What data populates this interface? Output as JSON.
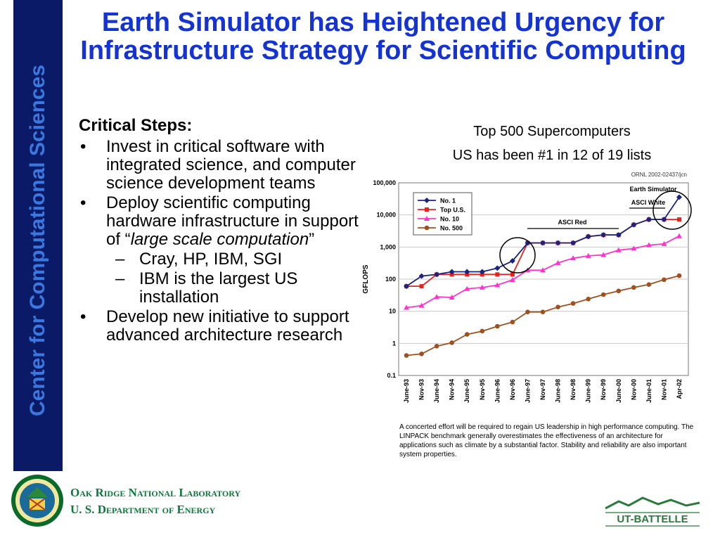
{
  "sidebar": {
    "text": "Center for Computational Sciences"
  },
  "title": "Earth Simulator has Heightened Urgency for Infrastructure Strategy for Scientific Computing",
  "content": {
    "heading": "Critical Steps:",
    "bullet1": "Invest in critical software with integrated science, and computer science development teams",
    "bullet2_a": "Deploy scientific computing hardware infrastructure in support of “",
    "bullet2_em": "large scale computation",
    "bullet2_b": "”",
    "sub1": "Cray, HP, IBM, SGI",
    "sub2": "IBM is the largest US installation",
    "bullet3": "Develop new initiative to support advanced architecture research",
    "bullet_marker": "•",
    "sub_marker": "–"
  },
  "chart_header": {
    "line1": "Top 500 Supercomputers",
    "line2": "US has been #1 in 12 of 19 lists"
  },
  "chart_data": {
    "type": "line",
    "ref": "ORNL 2002-02437/jcn",
    "ylabel": "GFLOPS",
    "yscale": "log",
    "ylim": [
      0.1,
      100000
    ],
    "yticks": [
      "0.1",
      "1",
      "10",
      "100",
      "1,000",
      "10,000",
      "100,000"
    ],
    "categories": [
      "June-93",
      "Nov-93",
      "June-94",
      "Nov-94",
      "June-95",
      "Nov-95",
      "June-96",
      "Nov-96",
      "June-97",
      "Nov-97",
      "June-98",
      "Nov-98",
      "June-99",
      "Nov-99",
      "June-00",
      "Nov-00",
      "June-01",
      "Nov-01",
      "Apr-02"
    ],
    "legend_position": "top-left",
    "series": [
      {
        "name": "No. 1",
        "color": "#1a237e",
        "marker": "diamond",
        "values": [
          60,
          125,
          140,
          170,
          170,
          170,
          220,
          370,
          1340,
          1340,
          1340,
          1340,
          2120,
          2380,
          2380,
          4940,
          7230,
          7230,
          35860
        ]
      },
      {
        "name": "Top U.S.",
        "color": "#e8231c",
        "marker": "square",
        "values": [
          60,
          60,
          140,
          140,
          140,
          140,
          140,
          140,
          1340,
          1340,
          1340,
          1340,
          2120,
          2380,
          2380,
          4940,
          7230,
          7230,
          7230
        ]
      },
      {
        "name": "No. 10",
        "color": "#ff33cc",
        "marker": "triangle",
        "values": [
          13,
          15,
          28,
          27,
          50,
          55,
          65,
          95,
          190,
          190,
          320,
          450,
          530,
          570,
          800,
          900,
          1150,
          1250,
          2200
        ]
      },
      {
        "name": "No. 500",
        "color": "#a0501e",
        "marker": "circle",
        "values": [
          0.42,
          0.47,
          0.82,
          1.05,
          1.9,
          2.4,
          3.4,
          4.6,
          9.5,
          9.5,
          13.5,
          17.5,
          24,
          33,
          43,
          55,
          68,
          96,
          128
        ]
      }
    ],
    "annotations": [
      "Earth Simulator",
      "ASCI White",
      "ASCI Red"
    ]
  },
  "caption": "A concerted effort will be required to regain US leadership in high performance computing.  The LINPACK benchmark generally overestimates the effectiveness of an architecture for applications such as climate by a substantial factor. Stability and reliability are also important system properties.",
  "footer": {
    "org_line1": "Oak Ridge National Laboratory",
    "org_line2": "U. S. Department of Energy",
    "logo_text": "UT-BATTELLE"
  },
  "colors": {
    "sidebar": "#0a1a66",
    "sidebar_text": "#3a78e0",
    "title": "#1433d1",
    "footer": "#0a7a3a"
  }
}
